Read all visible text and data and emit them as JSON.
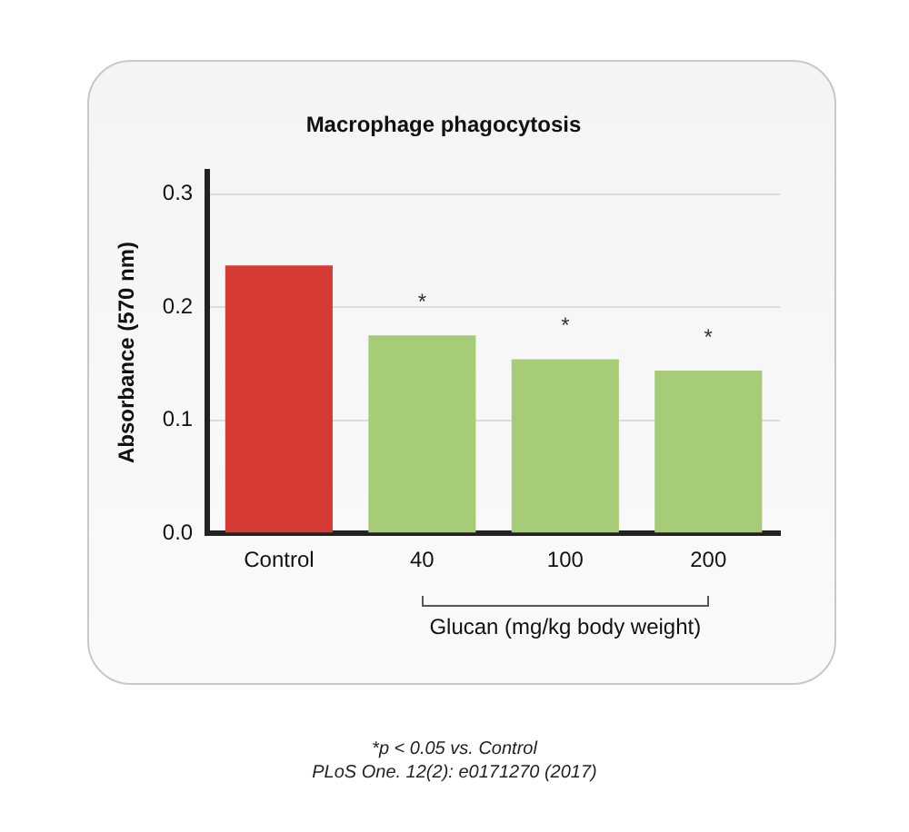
{
  "chart_data": {
    "type": "bar",
    "title": "Macrophage phagocytosis",
    "xlabel": "Glucan (mg/kg body weight)",
    "ylabel": "Absorbance (570 nm)",
    "categories": [
      "Control",
      "40",
      "100",
      "200"
    ],
    "values": [
      0.237,
      0.175,
      0.154,
      0.144
    ],
    "colors": [
      "#d63a35",
      "#a6cc78",
      "#a6cc78",
      "#a6cc78"
    ],
    "ylim": [
      0,
      0.32
    ],
    "yticks": [
      {
        "value": 0,
        "label": "0.0"
      },
      {
        "value": 0.1,
        "label": "0.1"
      },
      {
        "value": 0.2,
        "label": "0.2"
      },
      {
        "value": 0.3,
        "label": "0.3"
      }
    ],
    "grid": "y",
    "annotations": [
      {
        "text": "*",
        "x": "40",
        "y": 0.175
      },
      {
        "text": "*",
        "x": "100",
        "y": 0.154
      },
      {
        "text": "*",
        "x": "200",
        "y": 0.144
      },
      "*p < 0.05 vs. Control",
      "PLoS One. 12(2): e0171270 (2017)"
    ]
  }
}
